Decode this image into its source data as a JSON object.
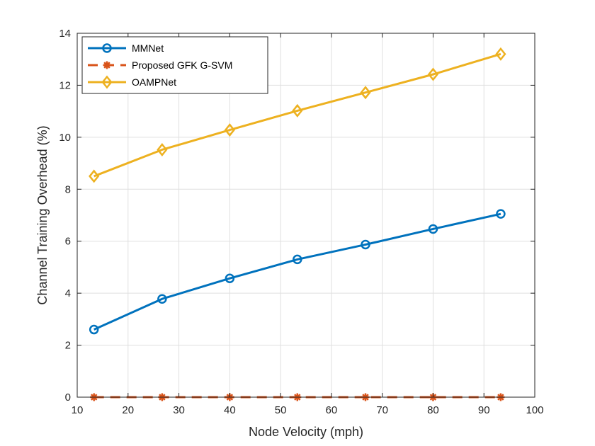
{
  "chart_data": {
    "type": "line",
    "title": "",
    "xlabel": "Node Velocity (mph)",
    "ylabel": "Channel Training Overhead (%)",
    "xlim": [
      10,
      100
    ],
    "ylim": [
      0,
      14
    ],
    "xticks": [
      10,
      20,
      30,
      40,
      50,
      60,
      70,
      80,
      90,
      100
    ],
    "yticks": [
      0,
      2,
      4,
      6,
      8,
      10,
      12,
      14
    ],
    "grid": true,
    "legend_position": "top-left",
    "x": [
      13.3,
      26.7,
      40,
      53.3,
      66.7,
      80,
      93.3
    ],
    "series": [
      {
        "name": "MMNet",
        "color": "#0072BD",
        "marker": "circle",
        "line": "solid",
        "values": [
          2.6,
          3.78,
          4.57,
          5.3,
          5.87,
          6.47,
          7.05
        ]
      },
      {
        "name": "Proposed GFK G-SVM",
        "color": "#D95319",
        "marker": "asterisk",
        "line": "dashed",
        "values": [
          0,
          0,
          0,
          0,
          0,
          0,
          0
        ]
      },
      {
        "name": "OAMPNet",
        "color": "#EDB120",
        "marker": "diamond",
        "line": "solid",
        "values": [
          8.5,
          9.52,
          10.28,
          11.02,
          11.72,
          12.42,
          13.2
        ]
      }
    ]
  }
}
